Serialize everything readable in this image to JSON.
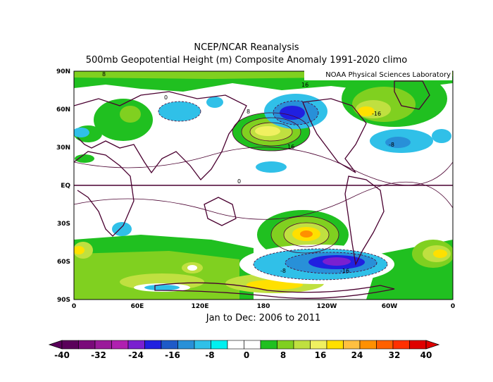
{
  "title": {
    "line1": "NCEP/NCAR Reanalysis",
    "line2": "500mb Geopotential Height (m) Composite Anomaly 1991-2020 climo"
  },
  "subtitle": "Jan to Dec: 2006 to 2011",
  "lab_label": "NOAA Physical Sciences Laboratory",
  "map": {
    "lat_ticks": [
      "90N",
      "60N",
      "30N",
      "EQ",
      "30S",
      "60S",
      "90S"
    ],
    "lon_ticks": [
      "0",
      "60E",
      "120E",
      "180",
      "120W",
      "60W",
      "0"
    ],
    "contour_labels": [
      "8",
      "16",
      "-8",
      "-16",
      "0",
      "8",
      "16",
      "-8",
      "-16",
      "0"
    ]
  },
  "colorbar": {
    "labels": [
      "-40",
      "-32",
      "-24",
      "-16",
      "-8",
      "0",
      "8",
      "16",
      "24",
      "32",
      "40"
    ],
    "colors": [
      "#5a005a",
      "#7a0a7a",
      "#9a1a9a",
      "#b020b0",
      "#7a20d0",
      "#2020e0",
      "#1e5ac8",
      "#2890d8",
      "#30c0e8",
      "#00f0f0",
      "#ffffff",
      "#ffffff",
      "#20c020",
      "#80d020",
      "#c0e040",
      "#f0f060",
      "#ffe000",
      "#ffc040",
      "#ff9000",
      "#ff6000",
      "#ff3000",
      "#e00000"
    ]
  }
}
